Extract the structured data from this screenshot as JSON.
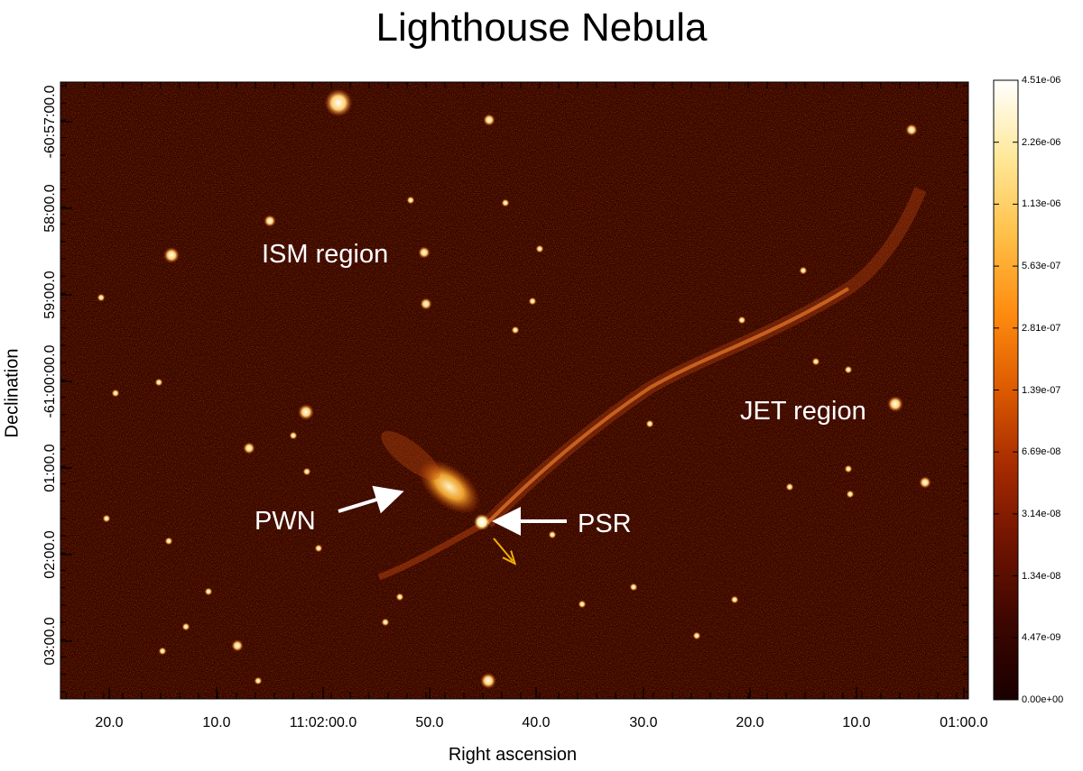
{
  "title": "Lighthouse Nebula",
  "xlabel": "Right ascension",
  "ylabel": "Declination",
  "x_ticks": [
    "20.0",
    "10.0",
    "11:02:00.0",
    "50.0",
    "40.0",
    "30.0",
    "20.0",
    "10.0",
    "01:00.0"
  ],
  "y_ticks": [
    "-60:57:00.0",
    "58:00.0",
    "59:00.0",
    "-61:00:00.0",
    "01:00.0",
    "02:00.0",
    "03:00.0"
  ],
  "colorbar": {
    "labels": [
      "4.51e-06",
      "2.26e-06",
      "1.13e-06",
      "5.63e-07",
      "2.81e-07",
      "1.39e-07",
      "6.69e-08",
      "3.14e-08",
      "1.34e-08",
      "4.47e-09",
      "0.00e+00"
    ],
    "colormap": "heat",
    "colors": [
      "#1a0000",
      "#3d0600",
      "#6e1300",
      "#a52a00",
      "#dc5a00",
      "#ff8c10",
      "#ffc048",
      "#ffe898",
      "#ffffff"
    ]
  },
  "annotations": {
    "ism": "ISM region",
    "jet": "JET region",
    "pwn": "PWN",
    "psr": "PSR"
  },
  "colors": {
    "background": "#2e0300",
    "arrow_white": "#ffffff",
    "arrow_yellow": "#f0b000"
  }
}
